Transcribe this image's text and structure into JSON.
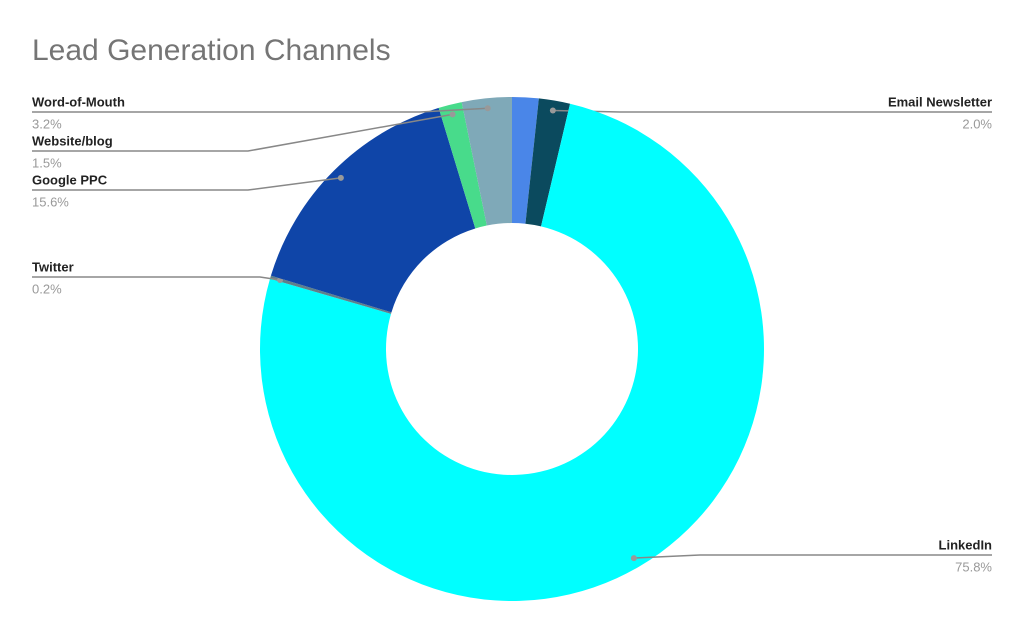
{
  "chart_data": {
    "type": "donut",
    "title": "Lead Generation Channels",
    "categories": [
      null,
      "Email Newsletter",
      "LinkedIn",
      "Twitter",
      "Google PPC",
      "Website/blog",
      "Word-of-Mouth"
    ],
    "values": [
      1.7,
      2.0,
      75.8,
      0.2,
      15.6,
      1.5,
      3.2
    ],
    "value_labels": [
      null,
      "2.0%",
      "75.8%",
      "0.2%",
      "15.6%",
      "1.5%",
      "3.2%"
    ],
    "colors": [
      "#4a86e8",
      "#0b4a5e",
      "#00ffff",
      "#5f7f8a",
      "#0f45a8",
      "#48db8b",
      "#7fa9b8"
    ]
  }
}
